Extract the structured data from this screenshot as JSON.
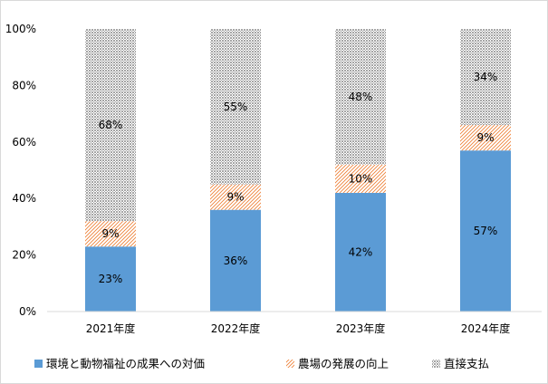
{
  "chart_data": {
    "type": "bar",
    "stacked": true,
    "percent": true,
    "categories": [
      "2021年度",
      "2022年度",
      "2023年度",
      "2024年度"
    ],
    "series": [
      {
        "name": "環境と動物福祉の成果への対価",
        "values": [
          23,
          36,
          42,
          57
        ],
        "labels": [
          "23%",
          "36%",
          "42%",
          "57%"
        ],
        "color": "#5b9bd5",
        "pattern": "solid"
      },
      {
        "name": "農場の発展の向上",
        "values": [
          9,
          9,
          10,
          9
        ],
        "labels": [
          "9%",
          "9%",
          "10%",
          "9%"
        ],
        "color": "#ed7d31",
        "pattern": "diagonal-hatch"
      },
      {
        "name": "直接支払",
        "values": [
          68,
          55,
          48,
          34
        ],
        "labels": [
          "68%",
          "55%",
          "48%",
          "34%"
        ],
        "color": "#a5a5a5",
        "pattern": "crosshatch"
      }
    ],
    "ylim": [
      0,
      100
    ],
    "yticks": [
      "0%",
      "20%",
      "40%",
      "60%",
      "80%",
      "100%"
    ],
    "grid": false,
    "legend": "bottom"
  }
}
